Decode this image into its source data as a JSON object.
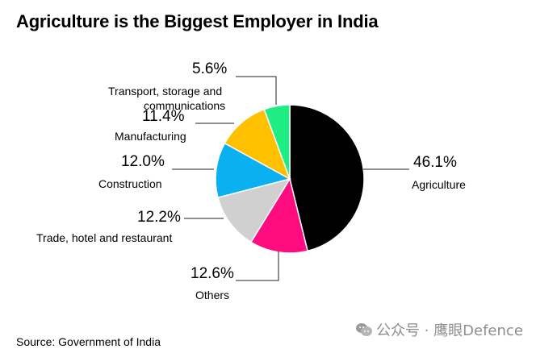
{
  "title": "Agriculture is the Biggest Employer in India",
  "source": "Source: Government of India",
  "watermark": "公众号 · 鹰眼Defence",
  "chart_data": {
    "type": "pie",
    "title": "Agriculture is the Biggest Employer in India",
    "start_angle_deg": 0,
    "direction": "clockwise",
    "slices": [
      {
        "label": "Agriculture",
        "value": 46.1,
        "value_label": "46.1%",
        "color": "#000000"
      },
      {
        "label": "Others",
        "value": 12.6,
        "value_label": "12.6%",
        "color": "#ff0d80"
      },
      {
        "label": "Trade, hotel and restaurant",
        "value": 12.2,
        "value_label": "12.2%",
        "color": "#d0d0d0"
      },
      {
        "label": "Construction",
        "value": 12.0,
        "value_label": "12.0%",
        "color": "#0ab0f0"
      },
      {
        "label": "Manufacturing",
        "value": 11.4,
        "value_label": "11.4%",
        "color": "#ffc000"
      },
      {
        "label": "Transport, storage and communications",
        "value": 5.6,
        "value_label": "5.6%",
        "color": "#20ec84"
      }
    ]
  }
}
